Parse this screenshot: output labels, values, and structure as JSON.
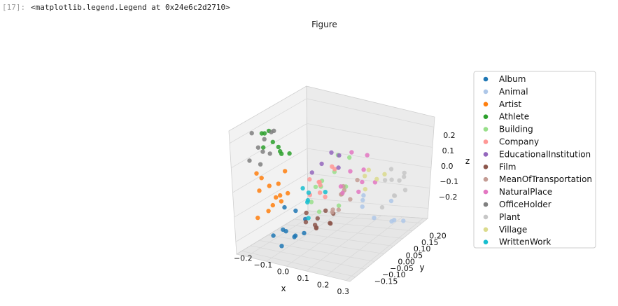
{
  "cell": {
    "prompt": "[17]:",
    "output": "<matplotlib.legend.Legend at 0x24e6c2d2710>"
  },
  "figure": {
    "title": "Figure"
  },
  "chart_data": {
    "type": "scatter",
    "projection": "3d",
    "grid": true,
    "legend_placement": "right, outside axes",
    "xlabel": "x",
    "ylabel": "y",
    "zlabel": "z",
    "xlim": [
      -0.25,
      0.32
    ],
    "ylim": [
      -0.18,
      0.23
    ],
    "zlim": [
      -0.25,
      0.25
    ],
    "x_ticks": [
      "−0.2",
      "−0.1",
      "0.0",
      "0.1",
      "0.2",
      "0.3"
    ],
    "y_ticks": [
      "−0.15",
      "−0.10",
      "−0.05",
      "0.00",
      "0.05",
      "0.10",
      "0.15",
      "0.20"
    ],
    "z_ticks": [
      "−0.2",
      "−0.1",
      "0.0",
      "0.1",
      "0.2"
    ],
    "x_tick_values": [
      -0.2,
      -0.1,
      0.0,
      0.1,
      0.2,
      0.3
    ],
    "y_tick_values": [
      -0.15,
      -0.1,
      -0.05,
      0.0,
      0.05,
      0.1,
      0.15,
      0.2
    ],
    "z_tick_values": [
      -0.2,
      -0.1,
      0.0,
      0.1,
      0.2
    ],
    "series": [
      {
        "name": "Album",
        "color": "#1f77b4",
        "points": [
          [
            -0.18,
            0.1,
            -0.22
          ],
          [
            -0.15,
            0.08,
            -0.2
          ],
          [
            -0.12,
            0.05,
            -0.24
          ],
          [
            -0.1,
            0.12,
            -0.18
          ],
          [
            -0.14,
            0.02,
            -0.15
          ],
          [
            -0.08,
            0.09,
            -0.21
          ],
          [
            -0.11,
            0.0,
            -0.19
          ],
          [
            -0.16,
            0.06,
            -0.12
          ],
          [
            -0.09,
            0.03,
            -0.23
          ],
          [
            -0.13,
            0.11,
            -0.25
          ]
        ]
      },
      {
        "name": "Animal",
        "color": "#aec7e8",
        "points": [
          [
            0.18,
            -0.05,
            -0.18
          ],
          [
            0.22,
            -0.1,
            -0.22
          ],
          [
            0.15,
            -0.02,
            -0.12
          ],
          [
            0.25,
            -0.08,
            -0.2
          ],
          [
            0.2,
            -0.12,
            -0.15
          ],
          [
            0.12,
            -0.06,
            -0.1
          ],
          [
            0.24,
            -0.14,
            -0.24
          ],
          [
            0.17,
            0.0,
            -0.08
          ]
        ]
      },
      {
        "name": "Artist",
        "color": "#ff7f0e",
        "points": [
          [
            -0.22,
            0.15,
            0.05
          ],
          [
            -0.2,
            0.1,
            -0.02
          ],
          [
            -0.18,
            0.18,
            0.0
          ],
          [
            -0.15,
            0.12,
            -0.05
          ],
          [
            -0.19,
            0.05,
            -0.08
          ],
          [
            -0.12,
            0.14,
            0.02
          ],
          [
            -0.17,
            0.2,
            -0.1
          ],
          [
            -0.14,
            0.08,
            0.04
          ],
          [
            -0.21,
            0.02,
            -0.12
          ],
          [
            -0.13,
            0.16,
            -0.06
          ],
          [
            -0.16,
            0.19,
            0.06
          ],
          [
            -0.1,
            0.11,
            -0.03
          ],
          [
            -0.23,
            0.07,
            -0.14
          ]
        ]
      },
      {
        "name": "Athlete",
        "color": "#2ca02c",
        "points": [
          [
            -0.22,
            0.12,
            0.2
          ],
          [
            -0.18,
            0.15,
            0.22
          ],
          [
            -0.2,
            0.08,
            0.15
          ],
          [
            -0.16,
            0.18,
            0.18
          ],
          [
            -0.14,
            0.1,
            0.12
          ],
          [
            -0.19,
            0.05,
            0.1
          ],
          [
            -0.12,
            0.14,
            0.17
          ],
          [
            -0.17,
            0.02,
            0.08
          ],
          [
            -0.15,
            0.16,
            0.24
          ]
        ]
      },
      {
        "name": "Building",
        "color": "#98df8a",
        "points": [
          [
            0.1,
            0.15,
            0.05
          ],
          [
            0.14,
            0.12,
            0.1
          ],
          [
            0.08,
            0.18,
            0.0
          ],
          [
            0.16,
            0.08,
            0.02
          ],
          [
            0.12,
            0.2,
            0.08
          ],
          [
            0.18,
            0.14,
            -0.02
          ],
          [
            0.06,
            0.1,
            0.04
          ],
          [
            0.15,
            0.05,
            0.12
          ],
          [
            0.11,
            0.17,
            -0.04
          ],
          [
            0.13,
            0.09,
            0.15
          ]
        ]
      },
      {
        "name": "Company",
        "color": "#ff9896",
        "points": [
          [
            0.0,
            0.05,
            0.0
          ],
          [
            0.03,
            0.08,
            0.02
          ],
          [
            -0.02,
            0.02,
            -0.03
          ],
          [
            0.05,
            0.1,
            -0.01
          ],
          [
            0.02,
            0.0,
            0.04
          ],
          [
            0.04,
            0.06,
            -0.05
          ],
          [
            -0.01,
            0.09,
            0.03
          ],
          [
            0.06,
            0.03,
            0.05
          ],
          [
            0.01,
            0.11,
            -0.02
          ]
        ]
      },
      {
        "name": "EducationalInstitution",
        "color": "#9467bd",
        "points": [
          [
            0.15,
            0.2,
            0.18
          ],
          [
            0.18,
            0.18,
            0.22
          ],
          [
            0.12,
            0.22,
            0.15
          ],
          [
            0.2,
            0.16,
            0.2
          ],
          [
            0.16,
            0.12,
            0.12
          ]
        ]
      },
      {
        "name": "Film",
        "color": "#8c564b",
        "points": [
          [
            -0.08,
            -0.02,
            -0.22
          ],
          [
            -0.05,
            0.0,
            -0.18
          ],
          [
            -0.1,
            -0.05,
            -0.25
          ],
          [
            -0.03,
            0.03,
            -0.2
          ],
          [
            -0.06,
            -0.08,
            -0.24
          ],
          [
            -0.02,
            -0.01,
            -0.15
          ],
          [
            -0.09,
            0.02,
            -0.19
          ],
          [
            -0.04,
            -0.06,
            -0.23
          ],
          [
            0.0,
            -0.03,
            -0.17
          ],
          [
            -0.07,
            0.04,
            -0.14
          ]
        ]
      },
      {
        "name": "MeanOfTransportation",
        "color": "#c49c94",
        "points": [
          [
            0.05,
            -0.02,
            -0.08
          ],
          [
            0.08,
            0.0,
            -0.05
          ],
          [
            0.02,
            -0.05,
            -0.1
          ],
          [
            0.07,
            0.02,
            -0.12
          ],
          [
            0.04,
            -0.04,
            -0.06
          ],
          [
            0.1,
            -0.01,
            -0.09
          ],
          [
            0.03,
            0.01,
            -0.14
          ],
          [
            0.09,
            -0.06,
            -0.04
          ],
          [
            0.06,
            0.04,
            -0.11
          ]
        ]
      },
      {
        "name": "NaturalPlace",
        "color": "#e377c2",
        "points": [
          [
            0.2,
            0.1,
            0.1
          ],
          [
            0.22,
            0.05,
            0.08
          ],
          [
            0.18,
            0.12,
            0.02
          ],
          [
            0.24,
            0.08,
            0.05
          ],
          [
            0.21,
            0.02,
            0.12
          ],
          [
            0.19,
            0.14,
            0.06
          ],
          [
            0.23,
            0.0,
            0.0
          ],
          [
            0.17,
            0.06,
            0.15
          ],
          [
            0.25,
            0.11,
            0.03
          ]
        ]
      },
      {
        "name": "OfficeHolder",
        "color": "#7f7f7f",
        "points": [
          [
            -0.2,
            0.2,
            0.24
          ],
          [
            -0.15,
            0.22,
            0.2
          ],
          [
            -0.12,
            0.18,
            0.25
          ],
          [
            -0.18,
            0.16,
            0.15
          ],
          [
            -0.1,
            0.21,
            0.18
          ],
          [
            -0.16,
            0.12,
            0.22
          ],
          [
            -0.22,
            0.19,
            0.12
          ],
          [
            -0.13,
            0.23,
            0.14
          ],
          [
            -0.19,
            0.14,
            0.19
          ]
        ]
      },
      {
        "name": "Plant",
        "color": "#c7c7c7",
        "points": [
          [
            0.22,
            -0.1,
            -0.05
          ],
          [
            0.25,
            -0.08,
            -0.1
          ],
          [
            0.2,
            -0.12,
            -0.02
          ],
          [
            0.28,
            -0.05,
            -0.08
          ],
          [
            0.24,
            -0.15,
            -0.12
          ],
          [
            0.26,
            -0.02,
            0.0
          ],
          [
            0.21,
            -0.06,
            -0.14
          ],
          [
            0.27,
            -0.11,
            -0.04
          ],
          [
            0.23,
            -0.13,
            -0.07
          ],
          [
            0.29,
            -0.09,
            -0.01
          ]
        ]
      },
      {
        "name": "Village",
        "color": "#dbdb8d",
        "points": [
          [
            0.18,
            0.0,
            0.02
          ],
          [
            0.22,
            -0.02,
            0.0
          ],
          [
            0.2,
            0.02,
            -0.02
          ],
          [
            0.24,
            -0.04,
            0.01
          ],
          [
            0.19,
            -0.01,
            0.04
          ]
        ]
      },
      {
        "name": "WrittenWork",
        "color": "#17becf",
        "points": [
          [
            -0.08,
            0.02,
            -0.1
          ],
          [
            -0.05,
            0.05,
            -0.05
          ],
          [
            -0.1,
            0.0,
            -0.12
          ],
          [
            -0.06,
            0.04,
            -0.16
          ],
          [
            -0.03,
            -0.02,
            -0.08
          ],
          [
            -0.07,
            0.06,
            -0.03
          ]
        ]
      }
    ]
  }
}
